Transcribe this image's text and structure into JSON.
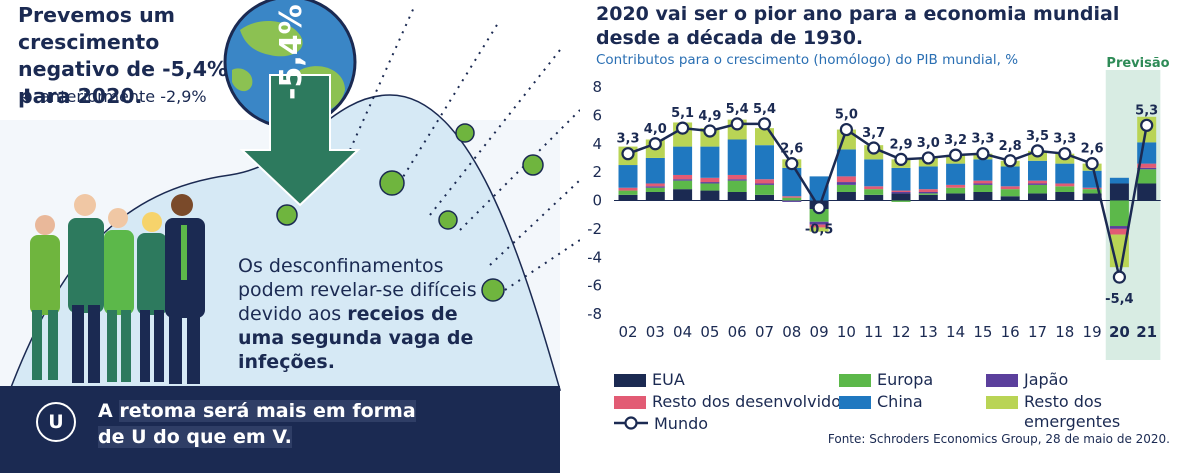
{
  "left": {
    "headline": "Prevemos um crescimento negativo de -5,4% para 2020.",
    "previous": "anteriormente -2,9%",
    "arrow_value": "-5,4%",
    "message_plain": "Os desconfinamentos podem revelar-se difíceis devido aos",
    "message_bold": "receios de uma segunda vaga de infeções.",
    "footer_badge": "U",
    "footer_text_1": "A",
    "footer_text_2": "retoma será mais em forma de U do que em V."
  },
  "colors": {
    "navy": "#1b2a52",
    "EUA": "#1b2a52",
    "Europa": "#5cb84a",
    "Japão": "#5b3f9c",
    "Resto dos desenvolvidos": "#e25b74",
    "China": "#1f78c0",
    "Resto dos emergentes": "#b9d455",
    "forecast_band": "#d8ece3",
    "globe_ocean": "#3a86c6",
    "globe_land": "#8cc152",
    "virus": "#6fb53e",
    "arrow": "#2d7a5e",
    "hill": "#d6e9f5"
  },
  "chart_data": {
    "type": "bar",
    "title": "2020 vai ser o pior ano para a economia mundial desde a década de 1930.",
    "subtitle": "Contributos para o crescimento (homólogo) do PIB mundial, %",
    "forecast_label": "Previsão",
    "categories": [
      "02",
      "03",
      "04",
      "05",
      "06",
      "07",
      "08",
      "09",
      "10",
      "11",
      "12",
      "13",
      "14",
      "15",
      "16",
      "17",
      "18",
      "19",
      "20",
      "21"
    ],
    "forecast_categories": [
      "20",
      "21"
    ],
    "ylim": [
      -8,
      8
    ],
    "yticks": [
      -8,
      -6,
      -4,
      -2,
      0,
      2,
      4,
      6,
      8
    ],
    "stacked": true,
    "series": [
      {
        "name": "EUA",
        "values": [
          0.4,
          0.6,
          0.8,
          0.7,
          0.6,
          0.4,
          0.0,
          -0.6,
          0.6,
          0.4,
          0.5,
          0.4,
          0.5,
          0.6,
          0.3,
          0.5,
          0.6,
          0.5,
          1.2,
          1.2
        ]
      },
      {
        "name": "Europa",
        "values": [
          0.3,
          0.3,
          0.6,
          0.5,
          0.8,
          0.7,
          0.2,
          -0.9,
          0.5,
          0.4,
          -0.1,
          0.1,
          0.4,
          0.5,
          0.5,
          0.6,
          0.4,
          0.3,
          -1.8,
          1.0
        ]
      },
      {
        "name": "Japão",
        "values": [
          0.0,
          0.1,
          0.1,
          0.1,
          0.1,
          0.1,
          -0.1,
          -0.2,
          0.2,
          0.0,
          0.1,
          0.1,
          0.0,
          0.1,
          0.0,
          0.1,
          0.0,
          0.0,
          -0.2,
          0.1
        ]
      },
      {
        "name": "Resto dos desenvolvidos",
        "values": [
          0.2,
          0.2,
          0.3,
          0.3,
          0.3,
          0.3,
          0.1,
          -0.2,
          0.4,
          0.2,
          0.1,
          0.2,
          0.2,
          0.2,
          0.2,
          0.2,
          0.2,
          0.1,
          -0.4,
          0.3
        ]
      },
      {
        "name": "China",
        "values": [
          1.6,
          1.8,
          2.0,
          2.2,
          2.5,
          2.4,
          2.0,
          1.7,
          1.9,
          1.9,
          1.6,
          1.6,
          1.5,
          1.5,
          1.4,
          1.4,
          1.4,
          1.2,
          0.4,
          1.5
        ]
      },
      {
        "name": "Resto dos emergentes",
        "values": [
          1.3,
          1.3,
          1.7,
          1.3,
          1.4,
          1.2,
          0.6,
          -0.3,
          1.4,
          1.0,
          0.6,
          0.6,
          0.6,
          0.4,
          0.4,
          0.7,
          0.7,
          0.5,
          -2.3,
          1.8
        ]
      }
    ],
    "line": {
      "name": "Mundo",
      "values": [
        3.3,
        4.0,
        5.1,
        4.9,
        5.4,
        5.4,
        2.6,
        -0.5,
        5.0,
        3.7,
        2.9,
        3.0,
        3.2,
        3.3,
        2.8,
        3.5,
        3.3,
        2.6,
        -5.4,
        5.3
      ],
      "labels": [
        "3,3",
        "4,0",
        "5,1",
        "4,9",
        "5,4",
        "5,4",
        "2,6",
        "-0,5",
        "5,0",
        "3,7",
        "2,9",
        "3,0",
        "3,2",
        "3,3",
        "2,8",
        "3,5",
        "3,3",
        "2,6",
        "-5,4",
        "5,3"
      ]
    },
    "legend_order": [
      "EUA",
      "Europa",
      "Japão",
      "Resto dos desenvolvidos",
      "China",
      "Resto dos emergentes",
      "Mundo"
    ],
    "legend_labels": {
      "EUA": "EUA",
      "Europa": "Europa",
      "Japão": "Japão",
      "Resto dos desenvolvidos": "Resto dos desenvolvidos",
      "China": "China",
      "Resto dos emergentes": "Resto dos emergentes",
      "Mundo": "Mundo"
    },
    "source": "Fonte: Schroders Economics Group, 28 de maio de 2020."
  }
}
